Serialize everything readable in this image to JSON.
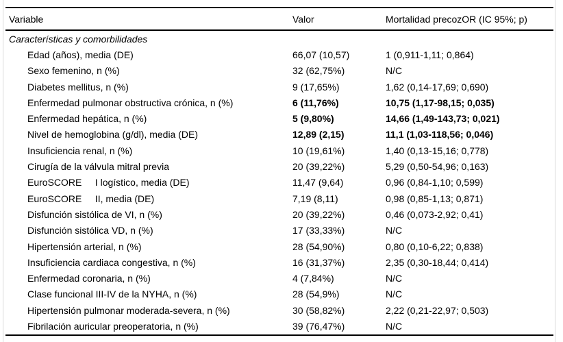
{
  "page": {
    "background": "#ffffff",
    "rule_color": "#000000",
    "edge_line_color": "#d8d8d8",
    "text_color": "#000000"
  },
  "table": {
    "columns": [
      "Variable",
      "Valor",
      "Mortalidad precozOR (IC 95%; p)"
    ],
    "section": "Características y comorbilidades",
    "rows": [
      {
        "variable": "Edad (años), media (DE)",
        "valor": "66,07 (10,57)",
        "or": "1 (0,911-1,11; 0,864)",
        "bold": false
      },
      {
        "variable": "Sexo femenino, n (%)",
        "valor": "32 (62,75%)",
        "or": "N/C",
        "bold": false
      },
      {
        "variable": "Diabetes mellitus, n (%)",
        "valor": "9 (17,65%)",
        "or": "1,62 (0,14-17,69; 0,690)",
        "bold": false
      },
      {
        "variable": "Enfermedad pulmonar obstructiva crónica, n (%)",
        "valor": "6 (11,76%)",
        "or": "10,75 (1,17-98,15; 0,035)",
        "bold": true
      },
      {
        "variable": "Enfermedad hepática, n (%)",
        "valor": "5 (9,80%)",
        "or": "14,66 (1,49-143,73; 0,021)",
        "bold": true
      },
      {
        "variable": "Nivel de hemoglobina (g/dl), media (DE)",
        "valor": "12,89 (2,15)",
        "or": "11,1 (1,03-118,56; 0,046)",
        "bold": true
      },
      {
        "variable": "Insuficiencia renal, n (%)",
        "valor": "10 (19,61%)",
        "or": "1,40 (0,13-15,16; 0,778)",
        "bold": false
      },
      {
        "variable": "Cirugía de la válvula mitral previa",
        "valor": "20 (39,22%)",
        "or": "5,29 (0,50-54,96; 0,163)",
        "bold": false
      },
      {
        "variable": "EuroSCORE     I logístico, media (DE)",
        "valor": "11,47 (9,64)",
        "or": "0,96 (0,84-1,10; 0,599)",
        "bold": false
      },
      {
        "variable": "EuroSCORE     II, media (DE)",
        "valor": "7,19 (8,11)",
        "or": "0,98 (0,85-1,13; 0,871)",
        "bold": false
      },
      {
        "variable": "Disfunción sistólica de VI, n (%)",
        "valor": "20 (39,22%)",
        "or": "0,46 (0,073-2,92; 0,41)",
        "bold": false
      },
      {
        "variable": "Disfunción sistólica VD, n (%)",
        "valor": "17 (33,33%)",
        "or": "N/C",
        "bold": false
      },
      {
        "variable": "Hipertensión arterial, n (%)",
        "valor": "28 (54,90%)",
        "or": "0,80 (0,10-6,22; 0,838)",
        "bold": false
      },
      {
        "variable": "Insuficiencia cardiaca congestiva, n (%)",
        "valor": "16 (31,37%)",
        "or": "2,35 (0,30-18,44; 0,414)",
        "bold": false
      },
      {
        "variable": "Enfermedad coronaria, n (%)",
        "valor": "4 (7,84%)",
        "or": "N/C",
        "bold": false
      },
      {
        "variable": "Clase funcional III-IV de la NYHA, n (%)",
        "valor": "28 (54,9%)",
        "or": "N/C",
        "bold": false
      },
      {
        "variable": "Hipertensión pulmonar moderada-severa, n (%)",
        "valor": "30 (58,82%)",
        "or": "2,22 (0,21-22,97; 0,503)",
        "bold": false
      },
      {
        "variable": "Fibrilación auricular preoperatoria, n (%)",
        "valor": "39 (76,47%)",
        "or": "N/C",
        "bold": false
      }
    ]
  }
}
